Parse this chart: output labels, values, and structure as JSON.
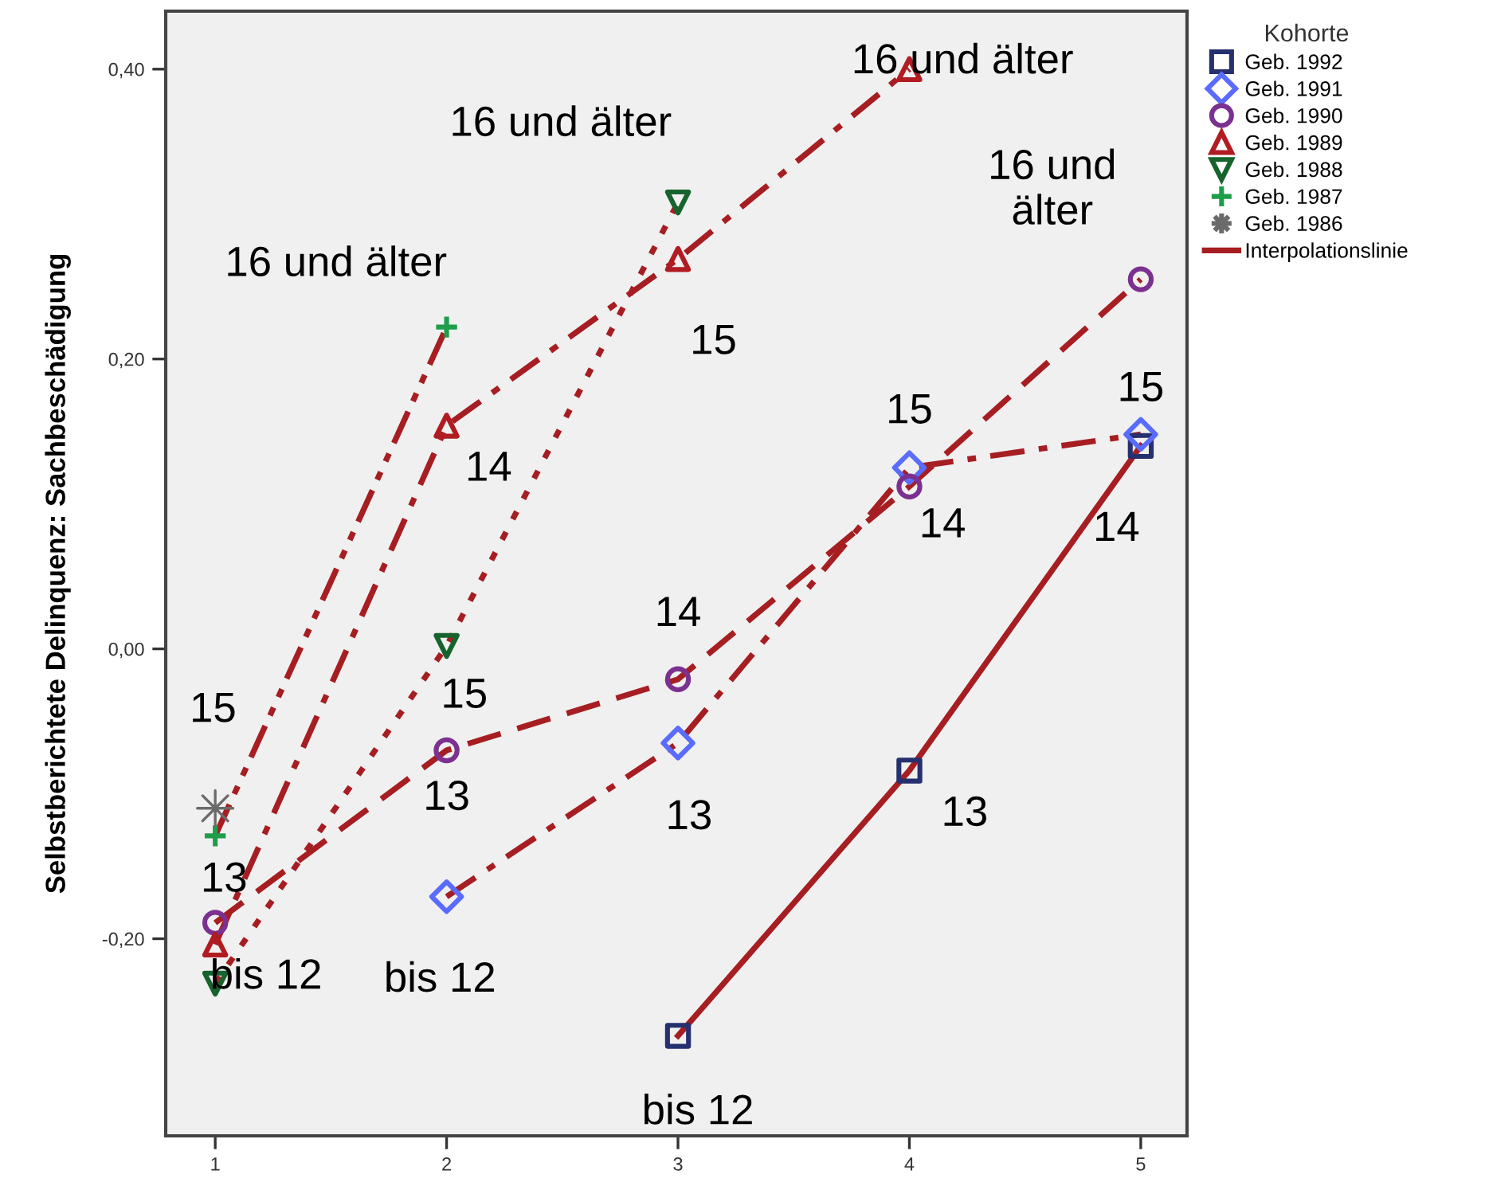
{
  "chart_data": {
    "type": "scatter",
    "ylabel": "Selbstberichtete Delinquenz: Sachbeschädigung",
    "legend_title": "Kohorte",
    "legend": "right",
    "grid": false,
    "xlim": [
      0.786,
      5.2
    ],
    "xticks": [
      1,
      2,
      3,
      4,
      5
    ],
    "ylim": [
      -0.336,
      0.44
    ],
    "yticks": [
      {
        "value": -0.2,
        "label": "-0,20"
      },
      {
        "value": 0.0,
        "label": "0,00"
      },
      {
        "value": 0.2,
        "label": "0,20"
      },
      {
        "value": 0.4,
        "label": "0,40"
      }
    ],
    "series": [
      {
        "name": "Geb. 1992",
        "marker": "square",
        "color": "#26306e",
        "x": [
          3,
          4,
          5
        ],
        "values": [
          -0.267,
          -0.084,
          0.14
        ]
      },
      {
        "name": "Geb. 1991",
        "marker": "diamond",
        "color": "#5a6cff",
        "x": [
          2,
          3,
          4,
          5
        ],
        "values": [
          -0.171,
          -0.065,
          0.125,
          0.148
        ]
      },
      {
        "name": "Geb. 1990",
        "marker": "circle",
        "color": "#7b3190",
        "x": [
          1,
          2,
          3,
          4,
          5
        ],
        "values": [
          -0.189,
          -0.07,
          -0.021,
          0.112,
          0.255
        ]
      },
      {
        "name": "Geb. 1989",
        "marker": "triangle",
        "color": "#b01c22",
        "x": [
          1,
          2,
          3,
          4
        ],
        "values": [
          -0.204,
          0.154,
          0.269,
          0.4
        ]
      },
      {
        "name": "Geb. 1988",
        "marker": "triangle_down",
        "color": "#16632e",
        "x": [
          1,
          2,
          3
        ],
        "values": [
          -0.231,
          0.002,
          0.308
        ]
      },
      {
        "name": "Geb. 1987",
        "marker": "cross",
        "color": "#1e9e4a",
        "x": [
          1,
          2
        ],
        "values": [
          -0.129,
          0.222
        ]
      },
      {
        "name": "Geb. 1986",
        "marker": "star",
        "color": "#6b6b6b",
        "x": [
          1
        ],
        "values": [
          -0.11
        ]
      },
      {
        "name": "Interpolationslinie",
        "type": "line",
        "line_style": "solid",
        "color": "#a61e22",
        "x": [
          3,
          4,
          5
        ],
        "values": [
          -0.267,
          -0.084,
          0.14
        ]
      },
      {
        "type": "line",
        "line_style": "dashdot",
        "color": "#a61e22",
        "x": [
          2,
          3,
          4,
          5
        ],
        "values": [
          -0.171,
          -0.065,
          0.125,
          0.148
        ]
      },
      {
        "type": "line",
        "line_style": "dashed",
        "color": "#a61e22",
        "x": [
          1,
          2,
          3,
          4,
          5
        ],
        "values": [
          -0.189,
          -0.07,
          -0.021,
          0.112,
          0.255
        ]
      },
      {
        "type": "line",
        "line_style": "dashdot",
        "color": "#a61e22",
        "x": [
          1,
          2,
          3,
          4
        ],
        "values": [
          -0.204,
          0.154,
          0.269,
          0.4
        ]
      },
      {
        "type": "line",
        "line_style": "dotted",
        "color": "#a61e22",
        "x": [
          1,
          2,
          3
        ],
        "values": [
          -0.231,
          0.002,
          0.308
        ]
      },
      {
        "type": "line",
        "line_style": "dashdotdot",
        "color": "#a61e22",
        "x": [
          1,
          2
        ],
        "values": [
          -0.129,
          0.222
        ]
      }
    ],
    "annotations": [
      {
        "text": "16 und älter",
        "x": 4,
        "y": 0.4
      },
      {
        "text": "16 und älter",
        "x": 3,
        "y": 0.308
      },
      {
        "text": "16 und älter",
        "x": 2,
        "y": 0.222
      },
      {
        "text": "16 und\nälter",
        "x": 5,
        "y": 0.255
      },
      {
        "text": "15",
        "x": 3,
        "y": 0.269
      },
      {
        "text": "15",
        "x": 5,
        "y": 0.148
      },
      {
        "text": "15",
        "x": 4,
        "y": 0.125
      },
      {
        "text": "14",
        "x": 2,
        "y": 0.154
      },
      {
        "text": "14",
        "x": 4,
        "y": 0.112
      },
      {
        "text": "14",
        "x": 5,
        "y": 0.14
      },
      {
        "text": "14",
        "x": 3,
        "y": -0.021
      },
      {
        "text": "15",
        "x": 2,
        "y": 0.002
      },
      {
        "text": "15",
        "x": 1,
        "y": -0.11
      },
      {
        "text": "13",
        "x": 2,
        "y": -0.07
      },
      {
        "text": "13",
        "x": 3,
        "y": -0.065
      },
      {
        "text": "13",
        "x": 4,
        "y": -0.084
      },
      {
        "text": "13",
        "x": 1,
        "y": -0.189
      },
      {
        "text": "bis 12",
        "x": 1,
        "y": -0.204
      },
      {
        "text": "bis 12",
        "x": 2,
        "y": -0.171
      },
      {
        "text": "bis 12",
        "x": 3,
        "y": -0.267
      }
    ]
  }
}
